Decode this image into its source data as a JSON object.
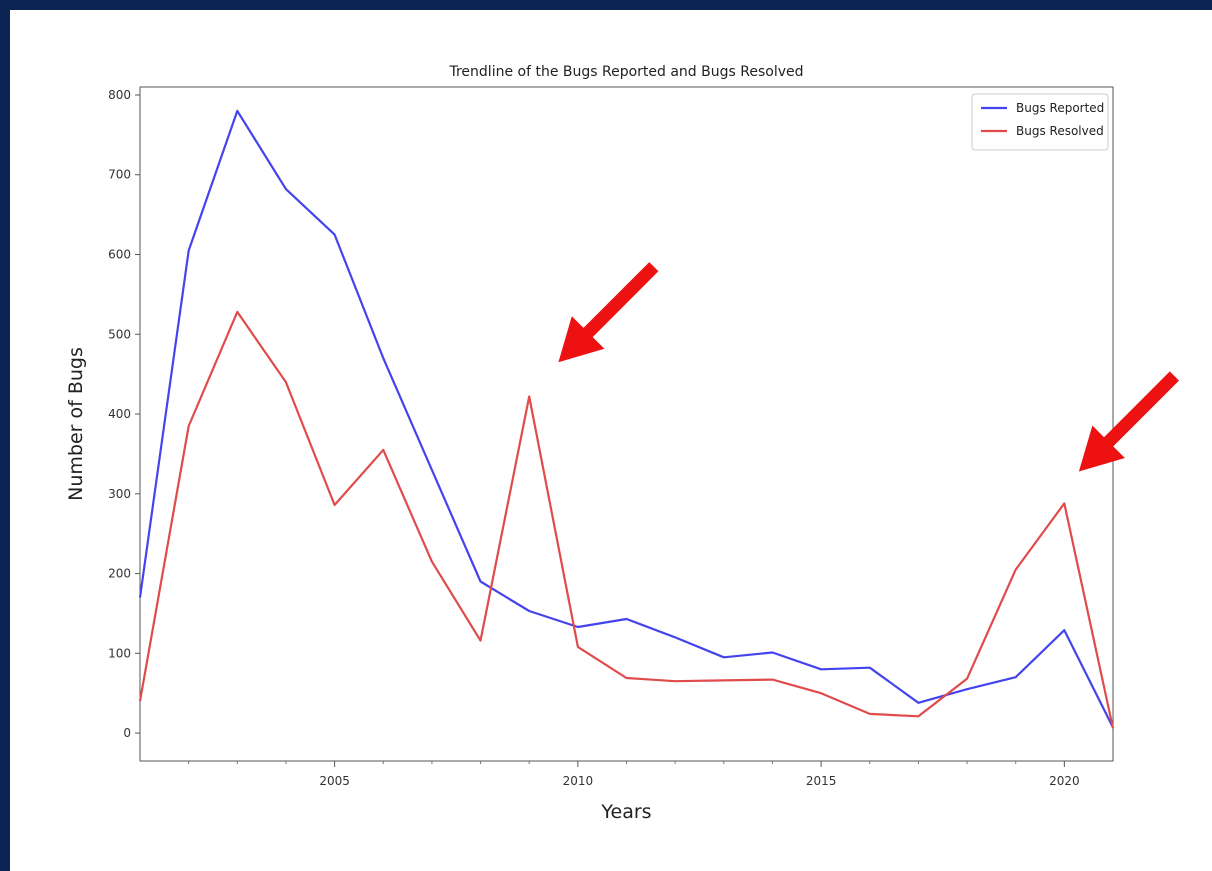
{
  "chart_data": {
    "type": "line",
    "title": "Trendline of the Bugs Reported and Bugs Resolved",
    "xlabel": "Years",
    "ylabel": "Number of Bugs",
    "xlim": [
      2001,
      2021
    ],
    "ylim": [
      -35,
      810
    ],
    "x_ticks": [
      2005,
      2010,
      2015,
      2020
    ],
    "y_ticks": [
      0,
      100,
      200,
      300,
      400,
      500,
      600,
      700,
      800
    ],
    "grid": false,
    "legend_position": "top-right",
    "x": [
      2001,
      2002,
      2003,
      2004,
      2005,
      2006,
      2007,
      2008,
      2009,
      2010,
      2011,
      2012,
      2013,
      2014,
      2015,
      2016,
      2017,
      2018,
      2019,
      2020,
      2021
    ],
    "series": [
      {
        "name": "Bugs Reported",
        "color": "#4444ee",
        "values": [
          170,
          605,
          780,
          682,
          625,
          470,
          330,
          190,
          153,
          133,
          143,
          120,
          95,
          101,
          80,
          82,
          38,
          55,
          70,
          129,
          7
        ]
      },
      {
        "name": "Bugs Resolved",
        "color": "#e04b4b",
        "values": [
          40,
          385,
          528,
          440,
          286,
          355,
          215,
          116,
          422,
          108,
          69,
          65,
          66,
          67,
          50,
          24,
          21,
          68,
          205,
          288,
          6
        ]
      }
    ],
    "annotations": [
      {
        "type": "arrow",
        "color": "#ee1111",
        "points_to": {
          "x": 2009.6,
          "y": 465
        }
      },
      {
        "type": "arrow",
        "color": "#ee1111",
        "points_to": {
          "x": 2020.3,
          "y": 328
        }
      }
    ]
  }
}
